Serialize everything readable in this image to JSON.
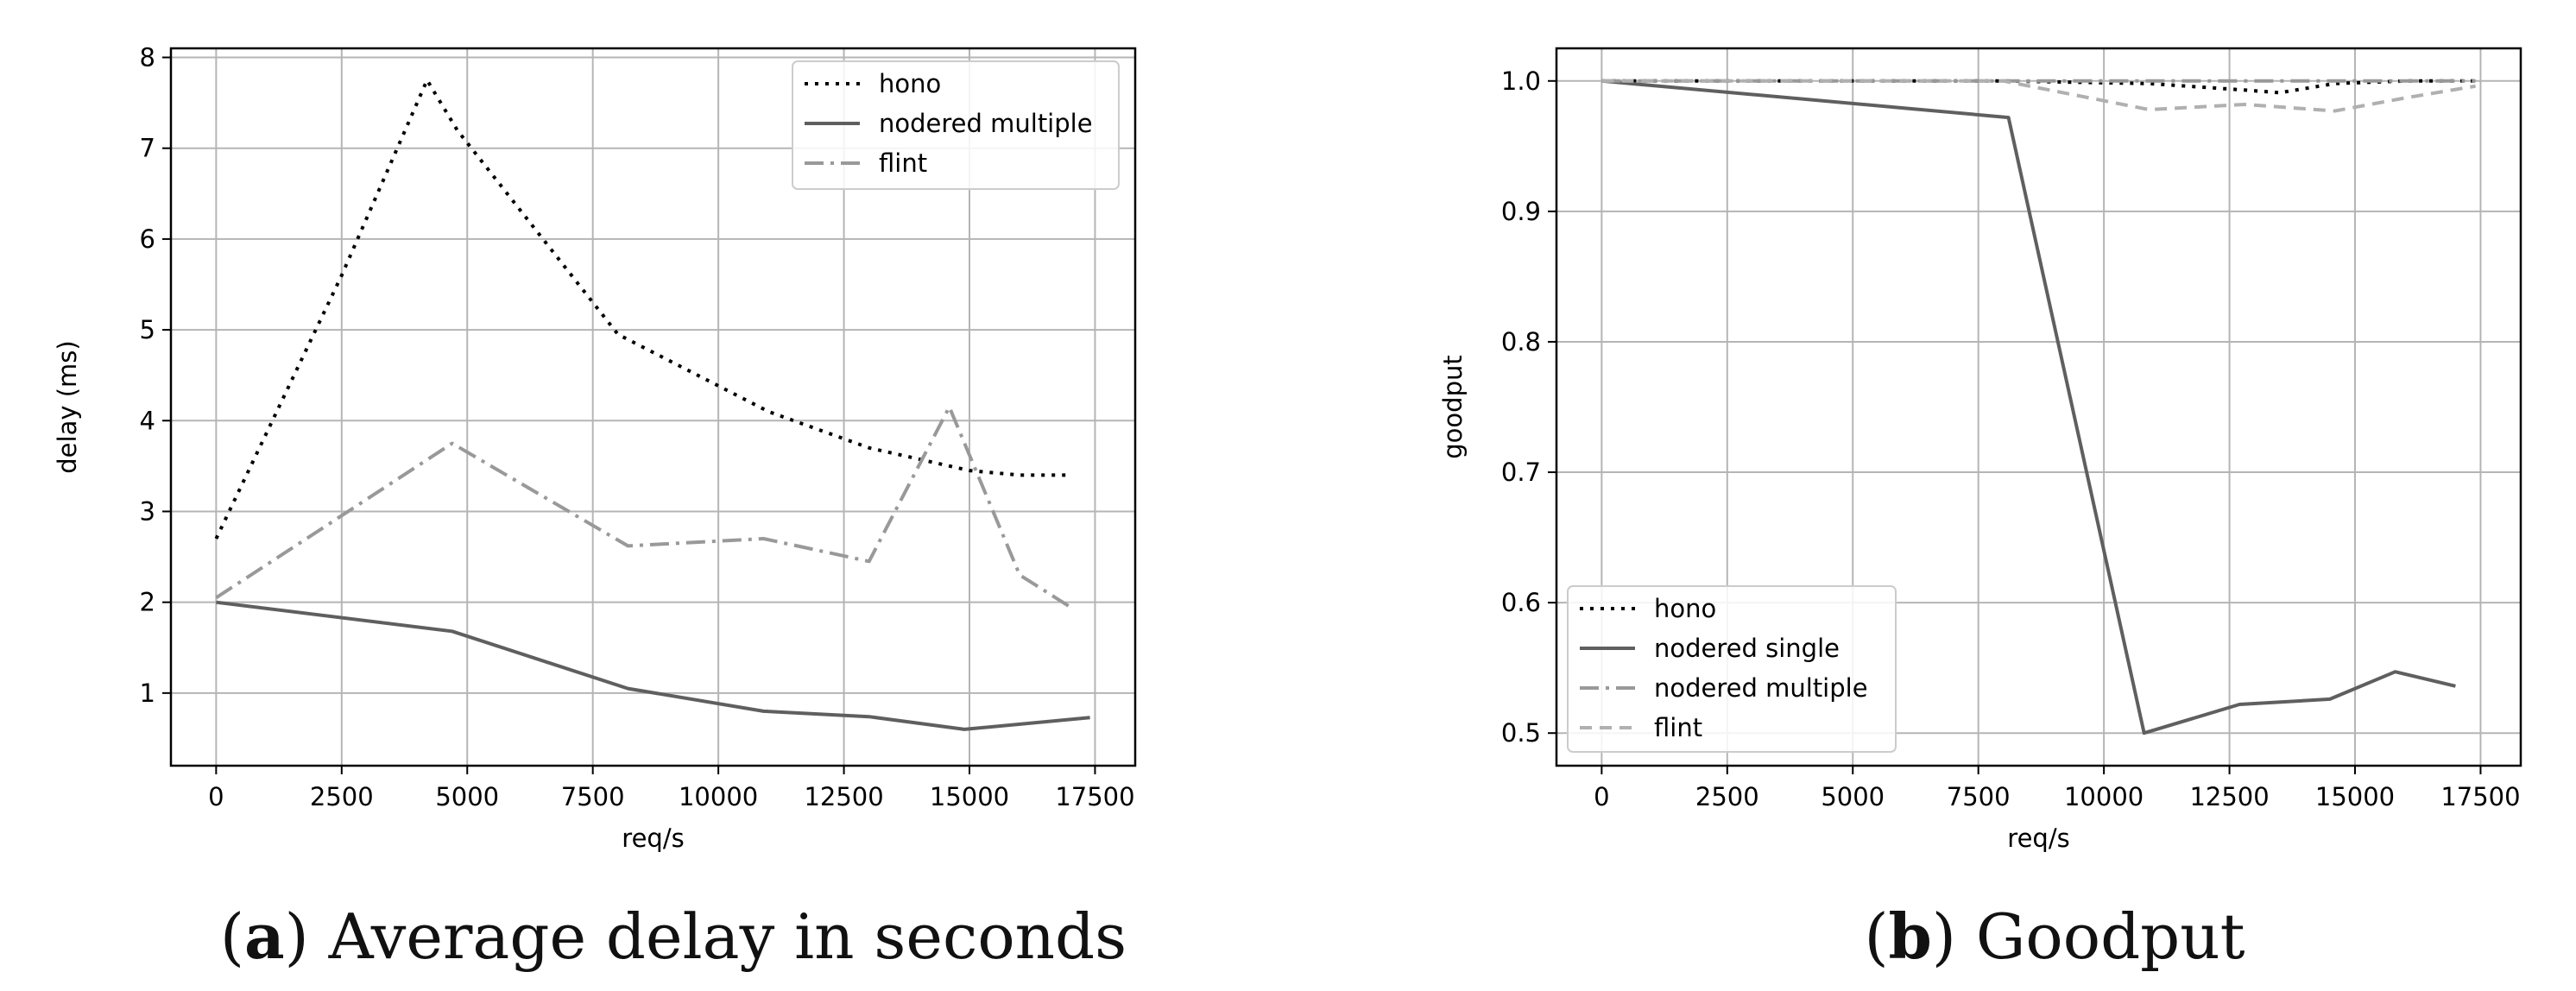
{
  "chart_data": [
    {
      "type": "line",
      "panel_label": "a",
      "caption": "Average delay in seconds",
      "xlabel": "req/s",
      "ylabel": "delay (ms)",
      "xlim": [
        -900,
        18300
      ],
      "ylim": [
        0.2,
        8.1
      ],
      "xticks": [
        0,
        2500,
        5000,
        7500,
        10000,
        12500,
        15000,
        17500
      ],
      "yticks": [
        1,
        2,
        3,
        4,
        5,
        6,
        7,
        8
      ],
      "grid": true,
      "legend_position": "top-right",
      "series": [
        {
          "name": "hono",
          "style": "dotted",
          "color": "#000000",
          "x": [
            0,
            2500,
            4200,
            4800,
            8000,
            11000,
            13000,
            15000,
            16000,
            17000
          ],
          "y": [
            2.7,
            5.6,
            7.75,
            7.2,
            4.95,
            4.1,
            3.7,
            3.45,
            3.4,
            3.4
          ]
        },
        {
          "name": "nodered multiple",
          "style": "solid",
          "color": "#5f5f5f",
          "x": [
            0,
            4700,
            8200,
            10900,
            13000,
            14900,
            17400
          ],
          "y": [
            2.0,
            1.68,
            1.05,
            0.8,
            0.74,
            0.6,
            0.73
          ]
        },
        {
          "name": "flint",
          "style": "dashdot",
          "color": "#999999",
          "x": [
            0,
            4700,
            8200,
            10900,
            13000,
            14600,
            16000,
            17000
          ],
          "y": [
            2.05,
            3.75,
            2.62,
            2.7,
            2.45,
            4.15,
            2.3,
            1.95
          ]
        }
      ]
    },
    {
      "type": "line",
      "panel_label": "b",
      "caption": "Goodput",
      "xlabel": "req/s",
      "ylabel": "goodput",
      "xlim": [
        -900,
        18300
      ],
      "ylim": [
        0.475,
        1.025
      ],
      "xticks": [
        0,
        2500,
        5000,
        7500,
        10000,
        12500,
        15000,
        17500
      ],
      "yticks": [
        0.5,
        0.6,
        0.7,
        0.8,
        0.9,
        1.0
      ],
      "grid": true,
      "legend_position": "bottom-left",
      "series": [
        {
          "name": "hono",
          "style": "dotted",
          "color": "#000000",
          "x": [
            0,
            8000,
            10900,
            12800,
            13500,
            14600,
            16000,
            17400
          ],
          "y": [
            1.0,
            1.0,
            0.998,
            0.993,
            0.991,
            0.998,
            1.0,
            1.0
          ]
        },
        {
          "name": "nodered single",
          "style": "solid",
          "color": "#5f5f5f",
          "x": [
            0,
            8100,
            10800,
            12700,
            14500,
            15800,
            17000
          ],
          "y": [
            1.0,
            0.972,
            0.5,
            0.522,
            0.526,
            0.547,
            0.536
          ]
        },
        {
          "name": "nodered multiple",
          "style": "dashdot",
          "color": "#999999",
          "x": [
            0,
            8000,
            11000,
            13000,
            15000,
            17400
          ],
          "y": [
            1.0,
            1.0,
            1.0,
            1.0,
            1.0,
            1.0
          ]
        },
        {
          "name": "flint",
          "style": "dashed",
          "color": "#b0b0b0",
          "x": [
            0,
            8000,
            10900,
            12800,
            14600,
            16000,
            17400
          ],
          "y": [
            1.0,
            1.0,
            0.978,
            0.982,
            0.977,
            0.987,
            0.996
          ]
        }
      ]
    }
  ]
}
